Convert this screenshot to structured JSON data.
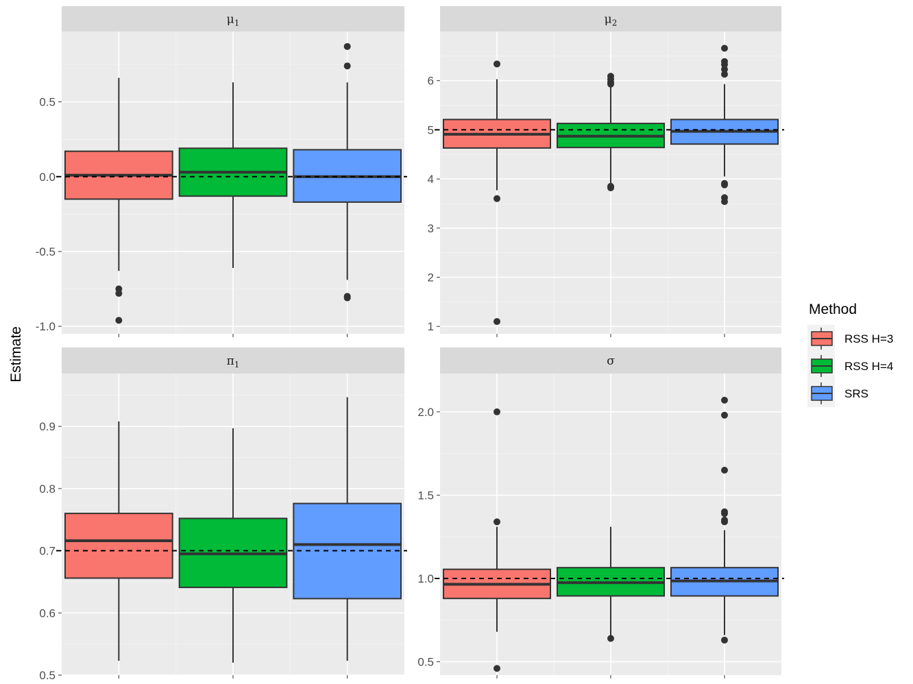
{
  "colors": {
    "panel_bg": "#EBEBEB",
    "grid_major": "#FFFFFF",
    "strip_bg": "#D9D9D9",
    "line": "#333333",
    "reference_line": "#000000"
  },
  "chart_data": {
    "type": "box",
    "ylabel": "Estimate",
    "xlabel": "",
    "legend": {
      "title": "Method",
      "position": "right",
      "entries": [
        {
          "label": "RSS H=3",
          "color": "#F8766D"
        },
        {
          "label": "RSS H=4",
          "color": "#00BA38"
        },
        {
          "label": "SRS",
          "color": "#619CFF"
        }
      ]
    },
    "categories": [
      "RSS H=3",
      "RSS H=4",
      "SRS"
    ],
    "grid": true,
    "panels": [
      {
        "id": "mu1",
        "strip": {
          "base": "μ",
          "sub": "1"
        },
        "ylim": [
          -1.05,
          0.97
        ],
        "yticks": [
          -1.0,
          -0.5,
          0.0,
          0.5
        ],
        "yticklabels": [
          "-1.0",
          "-0.5",
          "0.0",
          "0.5"
        ],
        "reference": 0.0,
        "boxes": [
          {
            "q1": -0.15,
            "median": 0.01,
            "q3": 0.17,
            "whisker_low": -0.63,
            "whisker_high": 0.66,
            "outliers": [
              -0.75,
              -0.78,
              -0.96
            ]
          },
          {
            "q1": -0.13,
            "median": 0.03,
            "q3": 0.19,
            "whisker_low": -0.61,
            "whisker_high": 0.63,
            "outliers": []
          },
          {
            "q1": -0.17,
            "median": 0.0,
            "q3": 0.18,
            "whisker_low": -0.69,
            "whisker_high": 0.63,
            "outliers": [
              -0.8,
              -0.81,
              0.74,
              0.87
            ]
          }
        ]
      },
      {
        "id": "mu2",
        "strip": {
          "base": "μ",
          "sub": "2"
        },
        "ylim": [
          0.85,
          7.0
        ],
        "yticks": [
          1,
          2,
          3,
          4,
          5,
          6
        ],
        "yticklabels": [
          "1",
          "2",
          "3",
          "4",
          "5",
          "6"
        ],
        "reference": 5.0,
        "boxes": [
          {
            "q1": 4.63,
            "median": 4.91,
            "q3": 5.21,
            "whisker_low": 3.77,
            "whisker_high": 6.03,
            "outliers": [
              3.6,
              1.1,
              6.34
            ]
          },
          {
            "q1": 4.64,
            "median": 4.87,
            "q3": 5.13,
            "whisker_low": 3.89,
            "whisker_high": 5.87,
            "outliers": [
              3.85,
              3.82,
              5.93,
              5.97,
              6.03,
              6.09
            ]
          },
          {
            "q1": 4.71,
            "median": 4.97,
            "q3": 5.21,
            "whisker_low": 4.05,
            "whisker_high": 5.93,
            "outliers": [
              3.91,
              3.88,
              3.62,
              3.54,
              6.13,
              6.23,
              6.33,
              6.39,
              6.66
            ]
          }
        ]
      },
      {
        "id": "pi1",
        "strip": {
          "base": "π",
          "sub": "1"
        },
        "ylim": [
          0.5,
          0.985
        ],
        "yticks": [
          0.5,
          0.6,
          0.7,
          0.8,
          0.9
        ],
        "yticklabels": [
          "0.5",
          "0.6",
          "0.7",
          "0.8",
          "0.9"
        ],
        "reference": 0.7,
        "boxes": [
          {
            "q1": 0.656,
            "median": 0.716,
            "q3": 0.76,
            "whisker_low": 0.523,
            "whisker_high": 0.908,
            "outliers": []
          },
          {
            "q1": 0.641,
            "median": 0.695,
            "q3": 0.752,
            "whisker_low": 0.52,
            "whisker_high": 0.897,
            "outliers": []
          },
          {
            "q1": 0.623,
            "median": 0.71,
            "q3": 0.776,
            "whisker_low": 0.523,
            "whisker_high": 0.947,
            "outliers": []
          }
        ]
      },
      {
        "id": "sigma",
        "strip": {
          "base": "σ",
          "sub": ""
        },
        "ylim": [
          0.42,
          2.23
        ],
        "yticks": [
          0.5,
          1.0,
          1.5,
          2.0
        ],
        "yticklabels": [
          "0.5",
          "1.0",
          "1.5",
          "2.0"
        ],
        "reference": 1.0,
        "boxes": [
          {
            "q1": 0.88,
            "median": 0.965,
            "q3": 1.055,
            "whisker_low": 0.68,
            "whisker_high": 1.31,
            "outliers": [
              0.46,
              1.34,
              2.0
            ]
          },
          {
            "q1": 0.895,
            "median": 0.975,
            "q3": 1.065,
            "whisker_low": 0.66,
            "whisker_high": 1.31,
            "outliers": [
              0.64
            ]
          },
          {
            "q1": 0.895,
            "median": 0.985,
            "q3": 1.065,
            "whisker_low": 0.66,
            "whisker_high": 1.29,
            "outliers": [
              0.63,
              1.34,
              1.35,
              1.39,
              1.4,
              1.65,
              1.98,
              2.07
            ]
          }
        ]
      }
    ]
  }
}
